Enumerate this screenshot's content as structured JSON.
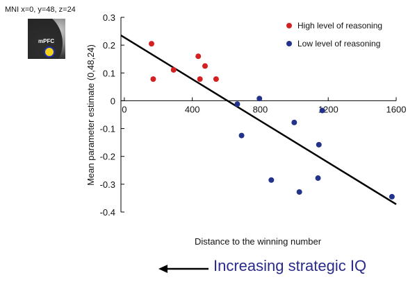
{
  "inset": {
    "caption": "MNI x=0, y=48, z=24",
    "roi_label": "mPFC"
  },
  "annotation": {
    "text": "Increasing strategic IQ"
  },
  "chart_data": {
    "type": "scatter",
    "title": "",
    "xlabel": "Distance to the winning number",
    "ylabel": "Mean parameter estimate (0,48,24)",
    "xlim": [
      -20,
      1600
    ],
    "ylim": [
      -0.4,
      0.3
    ],
    "xticks": [
      0,
      400,
      800,
      1200,
      1600
    ],
    "xtick_labels": [
      "0",
      "400",
      "800",
      "1200",
      "1600"
    ],
    "yticks": [
      0.3,
      0.2,
      0.1,
      0,
      -0.1,
      -0.2,
      -0.3,
      -0.4
    ],
    "ytick_labels": [
      "0.3",
      "0.2",
      "0.1",
      "0",
      "-0.1",
      "-0.2",
      "-0.3",
      "-0.4"
    ],
    "grid": false,
    "legend_position": "top-right",
    "series": [
      {
        "name": "High level of reasoning",
        "color": "#d42020",
        "points": [
          {
            "x": 160,
            "y": 0.205
          },
          {
            "x": 170,
            "y": 0.078
          },
          {
            "x": 290,
            "y": 0.111
          },
          {
            "x": 435,
            "y": 0.16
          },
          {
            "x": 445,
            "y": 0.078
          },
          {
            "x": 475,
            "y": 0.125
          },
          {
            "x": 540,
            "y": 0.078
          }
        ]
      },
      {
        "name": "Low level of reasoning",
        "color": "#24338a",
        "points": [
          {
            "x": 665,
            "y": -0.012
          },
          {
            "x": 690,
            "y": -0.125
          },
          {
            "x": 795,
            "y": 0.008
          },
          {
            "x": 865,
            "y": -0.285
          },
          {
            "x": 1000,
            "y": -0.078
          },
          {
            "x": 1030,
            "y": -0.328
          },
          {
            "x": 1140,
            "y": -0.278
          },
          {
            "x": 1145,
            "y": -0.158
          },
          {
            "x": 1165,
            "y": -0.035
          },
          {
            "x": 1575,
            "y": -0.345
          }
        ]
      }
    ],
    "regression_line": {
      "color": "#000000",
      "points": [
        {
          "x": -20,
          "y": 0.235
        },
        {
          "x": 1600,
          "y": -0.372
        }
      ]
    }
  }
}
